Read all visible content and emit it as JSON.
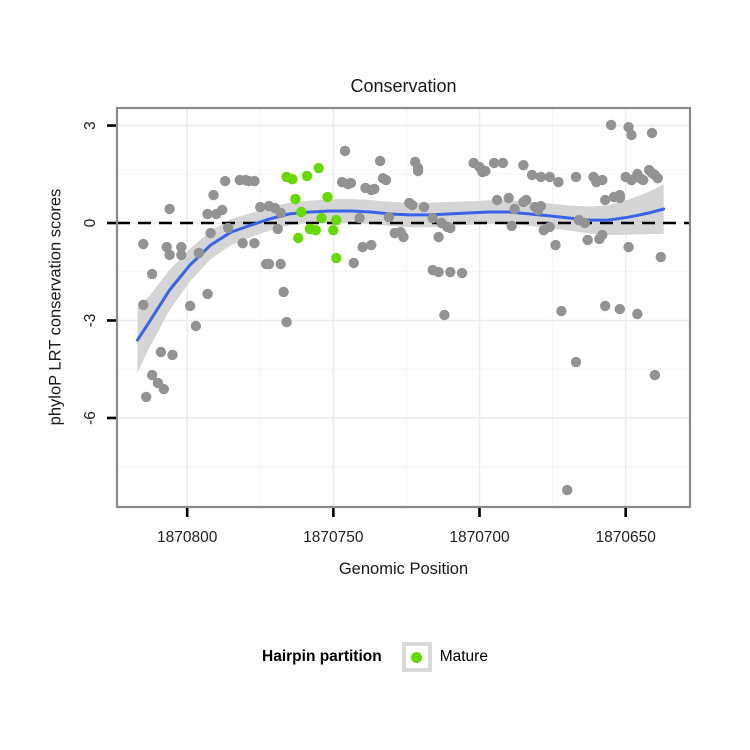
{
  "title": "Conservation",
  "axes": {
    "x": {
      "label": "Genomic Position",
      "ticks": [
        1870800,
        1870750,
        1870700,
        1870650
      ],
      "minor_ticks": [
        1870775,
        1870725,
        1870675
      ]
    },
    "y": {
      "label": "phyloP LRT conservation scores",
      "ticks": [
        3,
        0,
        -3,
        -6
      ],
      "minor_ticks": [
        1.5,
        -1.5,
        -4.5,
        -7.5
      ]
    }
  },
  "legend": {
    "title": "Hairpin partition",
    "items": [
      {
        "label": "Mature",
        "color": "#66db00"
      }
    ]
  },
  "colors": {
    "other_points": "#939393",
    "mature_points": "#66db00",
    "smooth_line": "#3a63e8",
    "ci_band": "#d5d5d5",
    "zero_line": "#000000",
    "panel_border": "#8a8a8a",
    "grid_major": "#ededed",
    "grid_minor": "#f6f6f6",
    "tick": "#000000"
  },
  "chart_data": {
    "type": "scatter",
    "title": "Conservation",
    "xlabel": "Genomic Position",
    "ylabel": "phyloP LRT conservation scores",
    "xlim": [
      1870824,
      1870628
    ],
    "ylim": [
      -8.74,
      3.54
    ],
    "x_axis_reversed": true,
    "reference_line_y": 0,
    "legend_position": "bottom",
    "series": [
      {
        "name": "Other",
        "color": "#939393",
        "points": [
          [
            1870815,
            -0.65
          ],
          [
            1870812,
            -1.57
          ],
          [
            1870807,
            -0.74
          ],
          [
            1870806,
            -0.98
          ],
          [
            1870806,
            0.43
          ],
          [
            1870802,
            -0.98
          ],
          [
            1870802,
            -0.74
          ],
          [
            1870796,
            -0.92
          ],
          [
            1870793,
            0.28
          ],
          [
            1870792,
            -0.31
          ],
          [
            1870791,
            0.86
          ],
          [
            1870790,
            0.28
          ],
          [
            1870788,
            0.4
          ],
          [
            1870787,
            1.29
          ],
          [
            1870786,
            -0.15
          ],
          [
            1870782,
            1.32
          ],
          [
            1870781,
            -0.62
          ],
          [
            1870780,
            1.32
          ],
          [
            1870779,
            1.29
          ],
          [
            1870777,
            1.29
          ],
          [
            1870777,
            -0.62
          ],
          [
            1870775,
            0.49
          ],
          [
            1870773,
            -1.26
          ],
          [
            1870772,
            0.52
          ],
          [
            1870772,
            -1.26
          ],
          [
            1870770,
            0.46
          ],
          [
            1870768,
            -1.26
          ],
          [
            1870767,
            -2.12
          ],
          [
            1870768,
            0.31
          ],
          [
            1870769,
            -0.18
          ],
          [
            1870747,
            1.26
          ],
          [
            1870745,
            1.2
          ],
          [
            1870746,
            2.22
          ],
          [
            1870743,
            -1.23
          ],
          [
            1870744,
            1.23
          ],
          [
            1870739,
            1.08
          ],
          [
            1870737,
            1.02
          ],
          [
            1870736,
            1.05
          ],
          [
            1870734,
            1.91
          ],
          [
            1870733,
            1.38
          ],
          [
            1870732,
            1.32
          ],
          [
            1870741,
            0.15
          ],
          [
            1870740,
            -0.74
          ],
          [
            1870737,
            -0.68
          ],
          [
            1870731,
            0.18
          ],
          [
            1870729,
            -0.31
          ],
          [
            1870727,
            -0.28
          ],
          [
            1870726,
            -0.43
          ],
          [
            1870722,
            1.88
          ],
          [
            1870721,
            1.69
          ],
          [
            1870721,
            1.6
          ],
          [
            1870724,
            0.62
          ],
          [
            1870723,
            0.55
          ],
          [
            1870719,
            0.49
          ],
          [
            1870716,
            0.15
          ],
          [
            1870714,
            -0.43
          ],
          [
            1870713,
            0.0
          ],
          [
            1870711,
            -0.12
          ],
          [
            1870710,
            -0.15
          ],
          [
            1870716,
            -1.45
          ],
          [
            1870714,
            -1.51
          ],
          [
            1870710,
            -1.51
          ],
          [
            1870706,
            -1.54
          ],
          [
            1870702,
            1.85
          ],
          [
            1870700,
            1.72
          ],
          [
            1870699,
            1.57
          ],
          [
            1870698,
            1.6
          ],
          [
            1870695,
            1.85
          ],
          [
            1870694,
            0.71
          ],
          [
            1870712,
            -2.83
          ],
          [
            1870815,
            -2.52
          ],
          [
            1870799,
            -2.55
          ],
          [
            1870793,
            -2.18
          ],
          [
            1870797,
            -3.17
          ],
          [
            1870809,
            -3.97
          ],
          [
            1870805,
            -4.06
          ],
          [
            1870812,
            -4.68
          ],
          [
            1870810,
            -4.92
          ],
          [
            1870808,
            -5.11
          ],
          [
            1870814,
            -5.35
          ],
          [
            1870766,
            -3.05
          ],
          [
            1870692,
            1.85
          ],
          [
            1870690,
            0.77
          ],
          [
            1870689,
            -0.09
          ],
          [
            1870688,
            0.43
          ],
          [
            1870685,
            1.78
          ],
          [
            1870685,
            0.65
          ],
          [
            1870684,
            0.71
          ],
          [
            1870682,
            1.48
          ],
          [
            1870681,
            0.49
          ],
          [
            1870680,
            0.4
          ],
          [
            1870679,
            0.52
          ],
          [
            1870679,
            1.42
          ],
          [
            1870678,
            -0.22
          ],
          [
            1870676,
            1.42
          ],
          [
            1870676,
            -0.12
          ],
          [
            1870674,
            -0.68
          ],
          [
            1870673,
            1.26
          ],
          [
            1870667,
            1.42
          ],
          [
            1870666,
            0.09
          ],
          [
            1870664,
            0.0
          ],
          [
            1870663,
            -0.52
          ],
          [
            1870661,
            1.42
          ],
          [
            1870660,
            1.26
          ],
          [
            1870659,
            -0.49
          ],
          [
            1870658,
            -0.37
          ],
          [
            1870658,
            1.32
          ],
          [
            1870657,
            0.71
          ],
          [
            1870655,
            3.02
          ],
          [
            1870654,
            0.8
          ],
          [
            1870652,
            0.77
          ],
          [
            1870652,
            0.86
          ],
          [
            1870650,
            1.42
          ],
          [
            1870649,
            -0.74
          ],
          [
            1870649,
            2.95
          ],
          [
            1870648,
            2.71
          ],
          [
            1870648,
            1.32
          ],
          [
            1870646,
            1.51
          ],
          [
            1870645,
            1.38
          ],
          [
            1870644,
            1.32
          ],
          [
            1870642,
            1.63
          ],
          [
            1870641,
            2.77
          ],
          [
            1870641,
            1.54
          ],
          [
            1870640,
            1.48
          ],
          [
            1870639,
            1.38
          ],
          [
            1870638,
            -1.05
          ],
          [
            1870672,
            -2.71
          ],
          [
            1870657,
            -2.55
          ],
          [
            1870652,
            -2.65
          ],
          [
            1870646,
            -2.8
          ],
          [
            1870667,
            -4.28
          ],
          [
            1870640,
            -4.68
          ],
          [
            1870670,
            -8.22
          ]
        ]
      },
      {
        "name": "Mature",
        "color": "#66db00",
        "points": [
          [
            1870766,
            1.42
          ],
          [
            1870764,
            1.35
          ],
          [
            1870759,
            1.45
          ],
          [
            1870755,
            1.69
          ],
          [
            1870763,
            0.74
          ],
          [
            1870752,
            0.8
          ],
          [
            1870761,
            0.34
          ],
          [
            1870754,
            0.15
          ],
          [
            1870749,
            0.09
          ],
          [
            1870758,
            -0.18
          ],
          [
            1870756,
            -0.22
          ],
          [
            1870750,
            -0.22
          ],
          [
            1870762,
            -0.46
          ],
          [
            1870749,
            -1.08
          ]
        ]
      }
    ],
    "smooth": {
      "color": "#3a63e8",
      "x": [
        1870817,
        1870813,
        1870806,
        1870799,
        1870792,
        1870785,
        1870778,
        1870772,
        1870765,
        1870758,
        1870751,
        1870744,
        1870737,
        1870731,
        1870724,
        1870717,
        1870710,
        1870703,
        1870697,
        1870690,
        1870683,
        1870676,
        1870669,
        1870662,
        1870656,
        1870649,
        1870642,
        1870637
      ],
      "y": [
        -3.6,
        -3.05,
        -2.06,
        -1.29,
        -0.68,
        -0.28,
        -0.06,
        0.12,
        0.28,
        0.34,
        0.37,
        0.37,
        0.34,
        0.28,
        0.25,
        0.25,
        0.28,
        0.31,
        0.34,
        0.34,
        0.28,
        0.22,
        0.15,
        0.09,
        0.09,
        0.18,
        0.31,
        0.43
      ],
      "ci_halfwidth": [
        1.0,
        0.8,
        0.62,
        0.5,
        0.43,
        0.4,
        0.37,
        0.36,
        0.35,
        0.35,
        0.36,
        0.37,
        0.37,
        0.37,
        0.38,
        0.38,
        0.37,
        0.36,
        0.36,
        0.36,
        0.37,
        0.38,
        0.39,
        0.42,
        0.46,
        0.54,
        0.65,
        0.76
      ]
    }
  }
}
